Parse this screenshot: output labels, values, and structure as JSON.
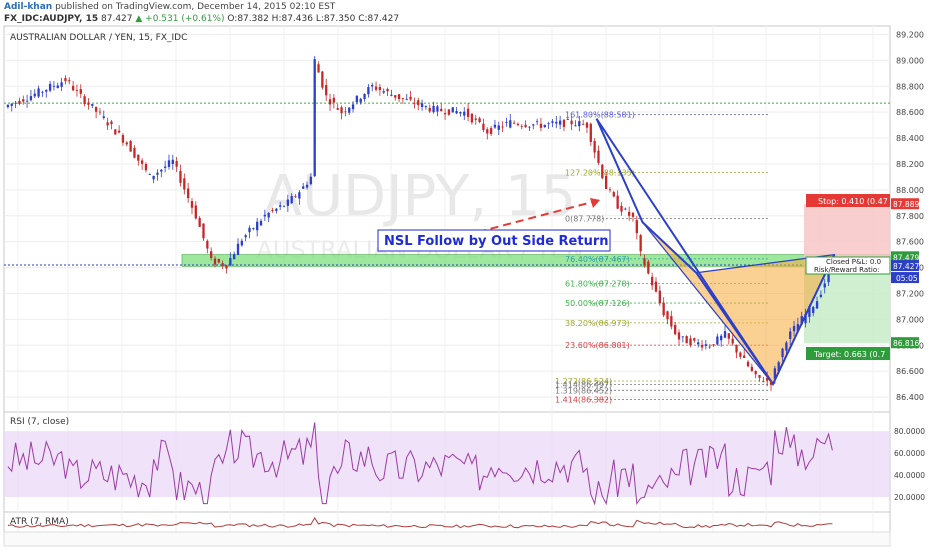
{
  "header": {
    "author": "Adil-khan",
    "published": "published on TradingView.com, December 14, 2015 02:10 EST",
    "symbol": "FX_IDC:AUDJPY, 15",
    "last": "87.427",
    "change": "▲ +0.531 (+0.61%)",
    "ohlc": "O:87.382  H:87.436  L:87.350  C:87.427"
  },
  "chart": {
    "title": "AUSTRALIAN DOLLAR / YEN, 15, FX_IDC",
    "watermark_big": "AUDJPY, 15",
    "watermark_small": "AUSTRALIAN DOLLAR / YEN"
  },
  "annotation": {
    "text": "NSL Follow by Out Side Return"
  },
  "position": {
    "stop_label": "Stop: 0.410 (0.47",
    "target_label": "Target: 0.663 (0.7",
    "pnl_label": "Closed P&L: 0.0",
    "rr_label": "Risk/Reward Ratio:",
    "stop_price": "87.889",
    "entry_price": "87.479",
    "last_price": "87.427",
    "target_price": "86.816",
    "countdown": "05:05",
    "colors": {
      "stop": "#e53935",
      "target": "#2e9c3a",
      "last": "#2b3fc8"
    }
  },
  "fib_labels": [
    {
      "text": "161.80%(88.581)",
      "price": 88.581,
      "color": "#5c5cd6"
    },
    {
      "text": "127.20%(88.135)",
      "price": 88.135,
      "color": "#a0a830"
    },
    {
      "text": "0(87.778)",
      "price": 87.778,
      "color": "#777777"
    },
    {
      "text": "76.40%(87.467)",
      "price": 87.467,
      "color": "#2f9ea8"
    },
    {
      "text": "61.80%(87.278)",
      "price": 87.278,
      "color": "#3bb54a"
    },
    {
      "text": "50.00%(87.126)",
      "price": 87.126,
      "color": "#3bb54a"
    },
    {
      "text": "38.20%(86.973)",
      "price": 86.973,
      "color": "#a0a830"
    },
    {
      "text": "23.60%(86.801)",
      "price": 86.801,
      "color": "#d64545"
    },
    {
      "text": "1.272(86.524)",
      "price": 86.524,
      "color": "#a0a830"
    },
    {
      "text": "1.414(86.497)",
      "price": 86.497,
      "color": "#777777"
    },
    {
      "text": "1.319(86.452)",
      "price": 86.452,
      "color": "#777777"
    },
    {
      "text": "1.414(86.382)",
      "price": 86.382,
      "color": "#d64545"
    }
  ],
  "chart_data": {
    "type": "candlestick",
    "title": "AUSTRALIAN DOLLAR / YEN, 15, FX_IDC",
    "y_ticks": [
      "89.200",
      "89.000",
      "88.800",
      "88.600",
      "88.400",
      "88.200",
      "88.000",
      "87.800",
      "87.600",
      "87.400",
      "87.200",
      "87.000",
      "86.800",
      "86.600",
      "86.400"
    ],
    "ylim": [
      86.3,
      89.25
    ],
    "x_ticks": [
      "18:00",
      "9",
      "06:00",
      "12:00",
      "18:00",
      "10",
      "06:00",
      "12:00",
      "18:00",
      "11",
      "06:00",
      "12:00",
      "18:00",
      "14",
      "06:00",
      "12:00",
      "18:00"
    ],
    "support_zone": [
      87.41,
      87.5
    ],
    "price_path": [
      {
        "x": 0,
        "y": 88.64
      },
      {
        "x": 8,
        "y": 88.74
      },
      {
        "x": 16,
        "y": 88.85
      },
      {
        "x": 20,
        "y": 88.72
      },
      {
        "x": 26,
        "y": 88.55
      },
      {
        "x": 32,
        "y": 88.36
      },
      {
        "x": 38,
        "y": 88.1
      },
      {
        "x": 44,
        "y": 88.22
      },
      {
        "x": 50,
        "y": 87.8
      },
      {
        "x": 54,
        "y": 87.45
      },
      {
        "x": 58,
        "y": 87.42
      },
      {
        "x": 62,
        "y": 87.62
      },
      {
        "x": 68,
        "y": 87.8
      },
      {
        "x": 74,
        "y": 87.9
      },
      {
        "x": 78,
        "y": 88.02
      },
      {
        "x": 80,
        "y": 88.1
      },
      {
        "x": 81,
        "y": 89.0
      },
      {
        "x": 84,
        "y": 88.72
      },
      {
        "x": 88,
        "y": 88.6
      },
      {
        "x": 96,
        "y": 88.8
      },
      {
        "x": 104,
        "y": 88.7
      },
      {
        "x": 112,
        "y": 88.62
      },
      {
        "x": 120,
        "y": 88.6
      },
      {
        "x": 126,
        "y": 88.45
      },
      {
        "x": 132,
        "y": 88.52
      },
      {
        "x": 140,
        "y": 88.5
      },
      {
        "x": 148,
        "y": 88.52
      },
      {
        "x": 152,
        "y": 88.5
      },
      {
        "x": 154,
        "y": 88.3
      },
      {
        "x": 157,
        "y": 88.02
      },
      {
        "x": 160,
        "y": 87.88
      },
      {
        "x": 164,
        "y": 87.78
      },
      {
        "x": 166,
        "y": 87.5
      },
      {
        "x": 168,
        "y": 87.35
      },
      {
        "x": 172,
        "y": 87.05
      },
      {
        "x": 176,
        "y": 86.85
      },
      {
        "x": 180,
        "y": 86.82
      },
      {
        "x": 184,
        "y": 86.8
      },
      {
        "x": 188,
        "y": 86.88
      },
      {
        "x": 192,
        "y": 86.72
      },
      {
        "x": 196,
        "y": 86.55
      },
      {
        "x": 200,
        "y": 86.52
      },
      {
        "x": 204,
        "y": 86.85
      },
      {
        "x": 208,
        "y": 87.0
      },
      {
        "x": 212,
        "y": 87.15
      },
      {
        "x": 216,
        "y": 87.42
      }
    ],
    "harmonic_points": [
      {
        "x": 154,
        "y": 88.55
      },
      {
        "x": 166,
        "y": 87.75
      },
      {
        "x": 180,
        "y": 87.36
      },
      {
        "x": 200,
        "y": 86.5
      },
      {
        "x": 216,
        "y": 87.5
      }
    ],
    "rsi": {
      "name": "RSI (7, close)",
      "ticks": [
        "80.0000",
        "60.0000",
        "40.0000",
        "20.0000"
      ],
      "ylim": [
        10,
        92
      ],
      "band": [
        20,
        80
      ]
    },
    "atr": {
      "name": "ATR (7, RMA)"
    }
  }
}
